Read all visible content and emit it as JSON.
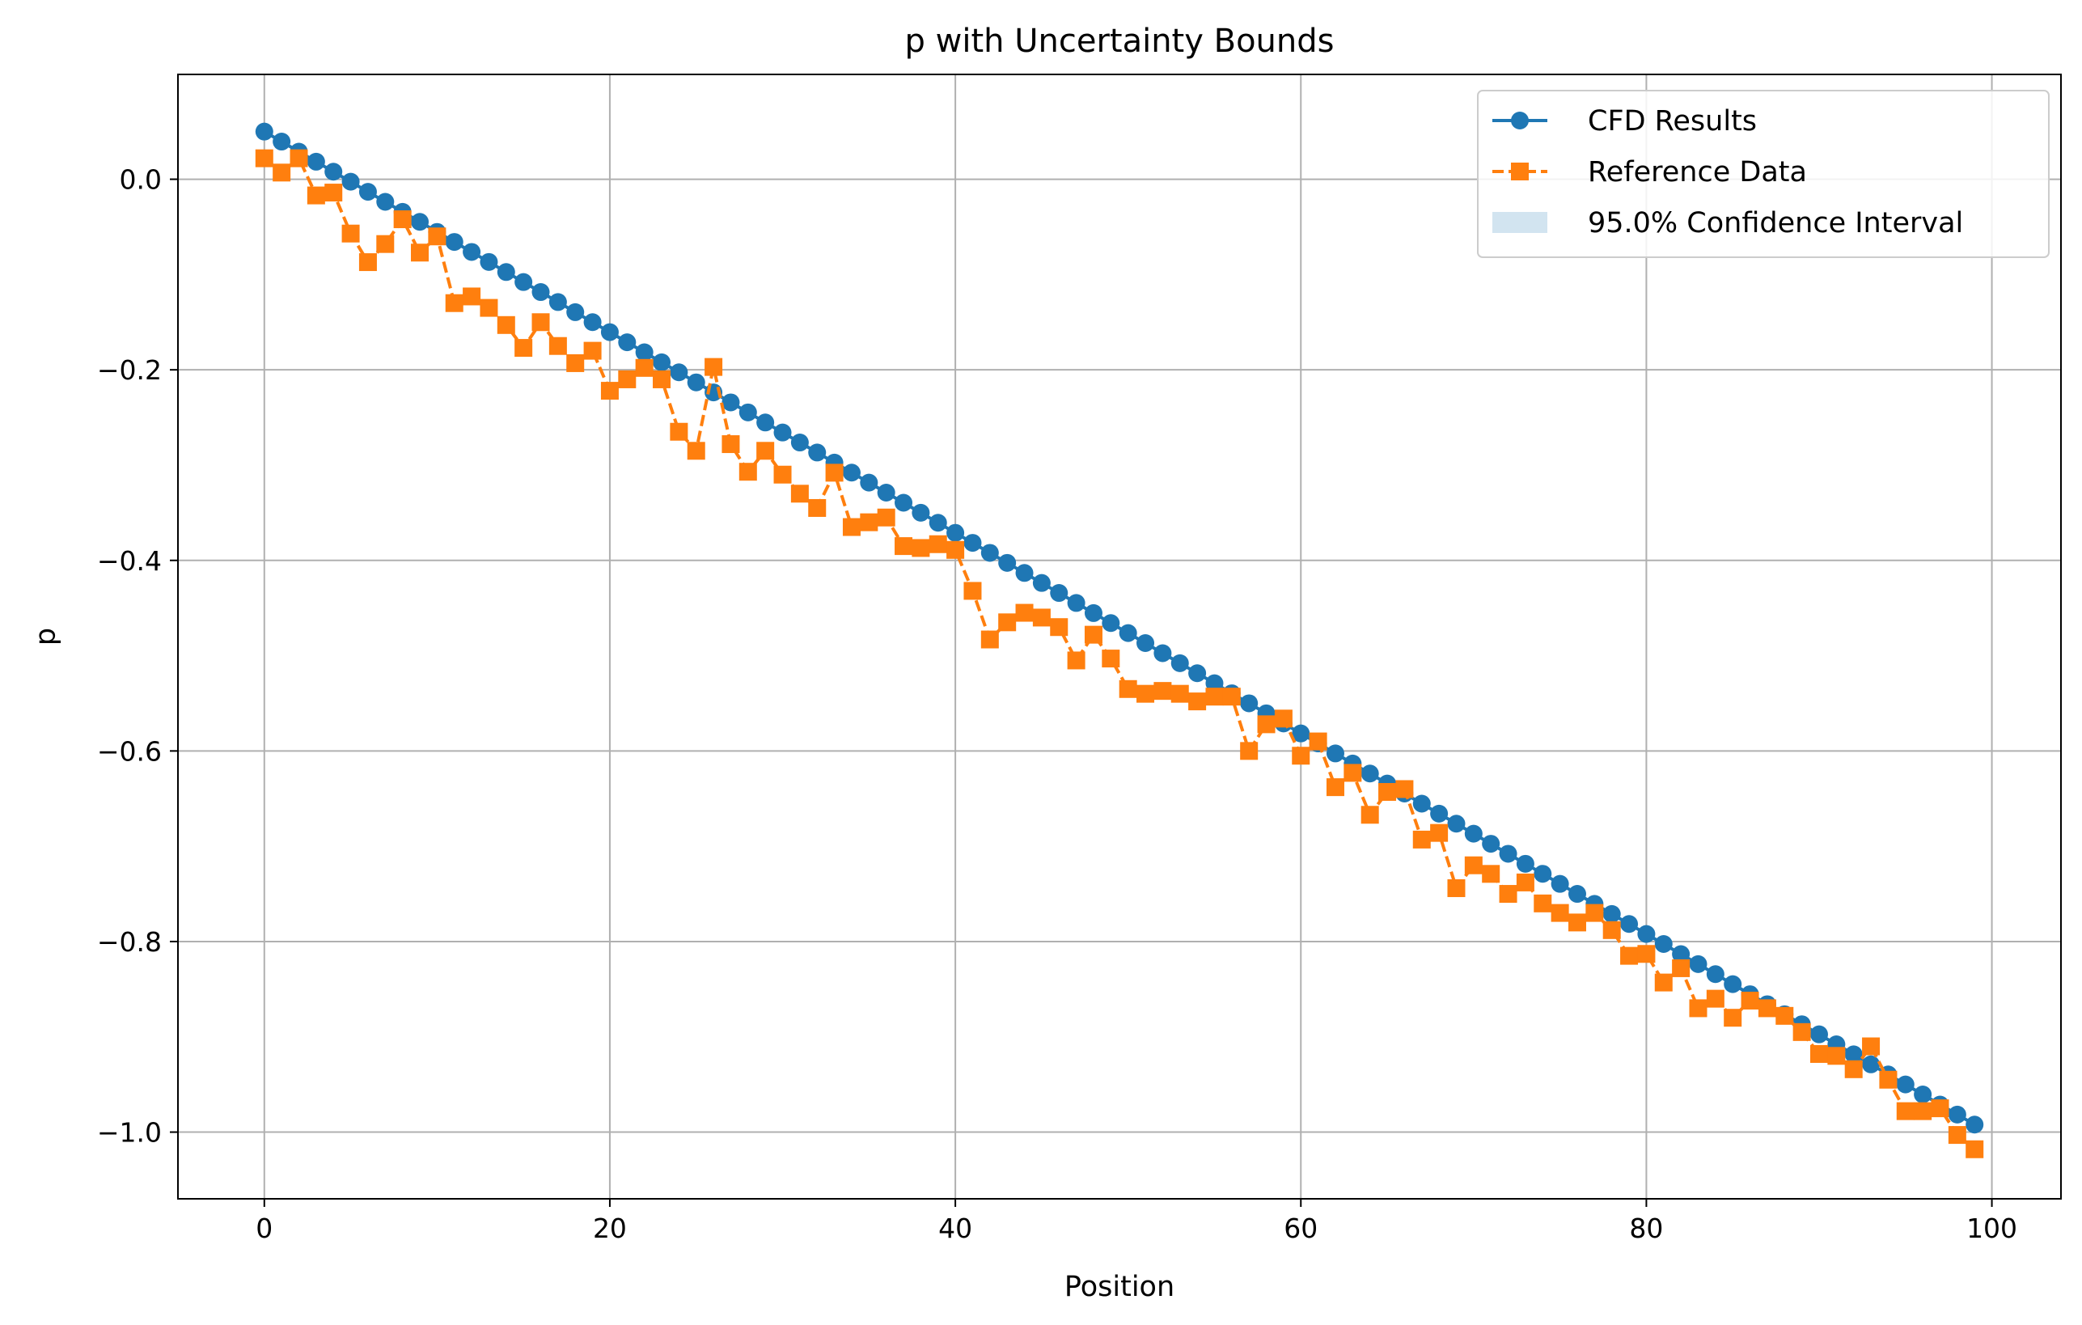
{
  "chart_data": {
    "type": "line",
    "title": "p with Uncertainty Bounds",
    "xlabel": "Position",
    "ylabel": "p",
    "xlim": [
      -5,
      104
    ],
    "ylim": [
      -1.07,
      0.11
    ],
    "xticks": [
      0,
      20,
      40,
      60,
      80,
      100
    ],
    "xtick_labels": [
      "0",
      "20",
      "40",
      "60",
      "80",
      "100"
    ],
    "yticks": [
      0.0,
      -0.2,
      -0.4,
      -0.6,
      -0.8,
      -1.0
    ],
    "ytick_labels": [
      "0.0",
      "−0.2",
      "−0.4",
      "−0.6",
      "−0.8",
      "−1.0"
    ],
    "grid": true,
    "legend_position": "top-right",
    "x": [
      0,
      1,
      2,
      3,
      4,
      5,
      6,
      7,
      8,
      9,
      10,
      11,
      12,
      13,
      14,
      15,
      16,
      17,
      18,
      19,
      20,
      21,
      22,
      23,
      24,
      25,
      26,
      27,
      28,
      29,
      30,
      31,
      32,
      33,
      34,
      35,
      36,
      37,
      38,
      39,
      40,
      41,
      42,
      43,
      44,
      45,
      46,
      47,
      48,
      49,
      50,
      51,
      52,
      53,
      54,
      55,
      56,
      57,
      58,
      59,
      60,
      61,
      62,
      63,
      64,
      65,
      66,
      67,
      68,
      69,
      70,
      71,
      72,
      73,
      74,
      75,
      76,
      77,
      78,
      79,
      80,
      81,
      82,
      83,
      84,
      85,
      86,
      87,
      88,
      89,
      90,
      91,
      92,
      93,
      94,
      95,
      96,
      97,
      98,
      99
    ],
    "series": [
      {
        "name": "CFD Results",
        "color": "#1f77b4",
        "linestyle": "solid",
        "marker": "circle",
        "values": [
          0.05,
          0.0395,
          0.0289,
          0.0184,
          0.0079,
          -0.0026,
          -0.0132,
          -0.0237,
          -0.0342,
          -0.0447,
          -0.0553,
          -0.0658,
          -0.0763,
          -0.0868,
          -0.0974,
          -0.1079,
          -0.1184,
          -0.1289,
          -0.1395,
          -0.15,
          -0.1605,
          -0.1711,
          -0.1816,
          -0.1921,
          -0.2026,
          -0.2132,
          -0.2237,
          -0.2342,
          -0.2447,
          -0.2553,
          -0.2658,
          -0.2763,
          -0.2868,
          -0.2974,
          -0.3079,
          -0.3184,
          -0.3289,
          -0.3395,
          -0.35,
          -0.3605,
          -0.3711,
          -0.3816,
          -0.3921,
          -0.4026,
          -0.4132,
          -0.4237,
          -0.4342,
          -0.4447,
          -0.4553,
          -0.4658,
          -0.4763,
          -0.4868,
          -0.4974,
          -0.5079,
          -0.5184,
          -0.5289,
          -0.5395,
          -0.55,
          -0.5605,
          -0.5711,
          -0.5816,
          -0.5921,
          -0.6026,
          -0.6132,
          -0.6237,
          -0.6342,
          -0.6447,
          -0.6553,
          -0.6658,
          -0.6763,
          -0.6868,
          -0.6974,
          -0.7079,
          -0.7184,
          -0.7289,
          -0.7395,
          -0.75,
          -0.7605,
          -0.7711,
          -0.7816,
          -0.7921,
          -0.8026,
          -0.8132,
          -0.8237,
          -0.8342,
          -0.8447,
          -0.8553,
          -0.8658,
          -0.8763,
          -0.8868,
          -0.8974,
          -0.9079,
          -0.9184,
          -0.9289,
          -0.9395,
          -0.95,
          -0.9605,
          -0.9711,
          -0.9816,
          -0.9921
        ]
      },
      {
        "name": "Reference Data",
        "color": "#ff7f0e",
        "linestyle": "dashed",
        "marker": "square",
        "values": [
          0.022,
          0.007,
          0.022,
          -0.017,
          -0.014,
          -0.057,
          -0.087,
          -0.068,
          -0.042,
          -0.077,
          -0.06,
          -0.13,
          -0.123,
          -0.135,
          -0.153,
          -0.177,
          -0.15,
          -0.175,
          -0.193,
          -0.18,
          -0.222,
          -0.21,
          -0.198,
          -0.21,
          -0.265,
          -0.285,
          -0.197,
          -0.278,
          -0.307,
          -0.285,
          -0.31,
          -0.33,
          -0.345,
          -0.308,
          -0.365,
          -0.36,
          -0.355,
          -0.385,
          -0.387,
          -0.383,
          -0.389,
          -0.432,
          -0.483,
          -0.465,
          -0.455,
          -0.46,
          -0.47,
          -0.505,
          -0.478,
          -0.503,
          -0.535,
          -0.54,
          -0.537,
          -0.54,
          -0.548,
          -0.543,
          -0.543,
          -0.6,
          -0.572,
          -0.566,
          -0.605,
          -0.59,
          -0.638,
          -0.623,
          -0.667,
          -0.643,
          -0.64,
          -0.693,
          -0.686,
          -0.744,
          -0.72,
          -0.729,
          -0.75,
          -0.738,
          -0.76,
          -0.77,
          -0.78,
          -0.77,
          -0.788,
          -0.815,
          -0.813,
          -0.843,
          -0.828,
          -0.87,
          -0.86,
          -0.88,
          -0.862,
          -0.87,
          -0.878,
          -0.895,
          -0.918,
          -0.92,
          -0.934,
          -0.91,
          -0.945,
          -0.978,
          -0.978,
          -0.975,
          -1.003,
          -1.018
        ]
      }
    ],
    "confidence_band": {
      "name": "95.0% Confidence Interval",
      "color": "#1f77b4",
      "opacity": 0.2
    }
  }
}
